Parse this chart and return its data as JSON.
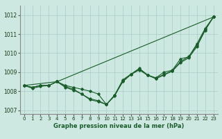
{
  "xlabel": "Graphe pression niveau de la mer (hPa)",
  "ylabel": "",
  "xlim": [
    -0.5,
    23.5
  ],
  "ylim": [
    1006.8,
    1012.5
  ],
  "yticks": [
    1007,
    1008,
    1009,
    1010,
    1011,
    1012
  ],
  "xticks": [
    0,
    1,
    2,
    3,
    4,
    5,
    6,
    7,
    8,
    9,
    10,
    11,
    12,
    13,
    14,
    15,
    16,
    17,
    18,
    19,
    20,
    21,
    22,
    23
  ],
  "bg_color": "#cce8e0",
  "grid_color": "#aacccc",
  "line_color": "#1a5c2a",
  "series": [
    [
      1008.3,
      1008.2,
      1008.3,
      1008.3,
      1008.5,
      1008.3,
      1008.2,
      1008.1,
      1008.0,
      1007.85,
      1007.3,
      1007.8,
      1008.6,
      1008.9,
      1009.2,
      1008.85,
      1008.7,
      1009.0,
      1009.1,
      1009.7,
      1009.8,
      1010.5,
      1011.3,
      1011.9
    ],
    [
      1008.3,
      1008.2,
      1008.3,
      1008.3,
      1008.5,
      1008.2,
      1008.05,
      1007.85,
      1007.6,
      1007.5,
      1007.3,
      1007.75,
      1008.55,
      1008.9,
      1009.15,
      1008.85,
      1008.65,
      1008.85,
      1009.05,
      1009.5,
      1009.75,
      1010.35,
      1011.2,
      1011.9
    ],
    [
      1008.3,
      null,
      null,
      null,
      1008.5,
      null,
      null,
      null,
      null,
      null,
      null,
      null,
      null,
      null,
      null,
      null,
      null,
      null,
      null,
      null,
      null,
      null,
      null,
      1011.9
    ],
    [
      1008.3,
      1008.15,
      1008.25,
      1008.3,
      1008.5,
      1008.25,
      1008.1,
      1007.85,
      1007.55,
      1007.45,
      1007.3,
      1007.78,
      1008.5,
      1008.88,
      1009.12,
      1008.83,
      1008.68,
      1008.88,
      1009.08,
      1009.55,
      1009.82,
      1010.4,
      1011.25,
      1011.9
    ]
  ]
}
